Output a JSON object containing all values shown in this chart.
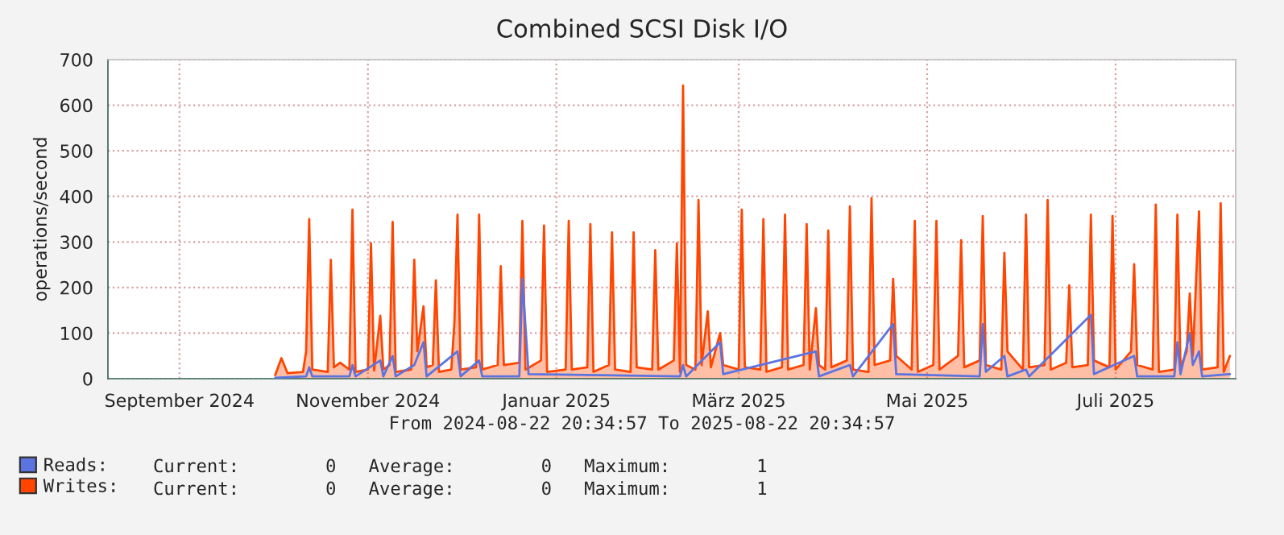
{
  "chart_data": {
    "type": "line",
    "title": "Combined SCSI Disk I/O",
    "ylabel": "operations/second",
    "xlim": [
      "2024-08-22T20:34",
      "2025-08-22T20:34"
    ],
    "xticks": [
      {
        "value": "2024-09-15",
        "label": "September 2024"
      },
      {
        "value": "2024-11-15",
        "label": "November 2024"
      },
      {
        "value": "2025-01-15",
        "label": "Januar 2025"
      },
      {
        "value": "2025-03-15",
        "label": "März 2025"
      },
      {
        "value": "2025-05-15",
        "label": "Mai 2025"
      },
      {
        "value": "2025-07-15",
        "label": "Juli 2025"
      }
    ],
    "ylim": [
      0,
      700
    ],
    "yticks": [
      0,
      100,
      200,
      300,
      400,
      500,
      600,
      700
    ],
    "grid": true,
    "legend": "bottom left",
    "annotations": [
      "From 2024-08-22 20:34:57 To 2025-08-22 20:34:57",
      "Current:        0   Average:        0   Maximum:        1",
      "Current:        0   Average:        0   Maximum:        1"
    ],
    "series": [
      {
        "name": "Reads:",
        "color": "#5b74e0",
        "x": [
          "2024-10-16",
          "2024-10-26",
          "2024-10-27",
          "2024-10-28",
          "2024-11-09",
          "2024-11-10",
          "2024-11-11",
          "2024-11-19",
          "2024-11-20",
          "2024-11-23",
          "2024-11-24",
          "2024-11-30",
          "2024-12-03",
          "2024-12-04",
          "2024-12-14",
          "2024-12-15",
          "2024-12-21",
          "2024-12-22",
          "2025-01-03",
          "2025-01-04",
          "2025-01-06",
          "2025-02-24",
          "2025-02-25",
          "2025-02-26",
          "2025-03-09",
          "2025-03-10",
          "2025-04-09",
          "2025-04-10",
          "2025-04-20",
          "2025-04-21",
          "2025-05-04",
          "2025-05-05",
          "2025-06-01",
          "2025-06-02",
          "2025-06-03",
          "2025-06-09",
          "2025-06-10",
          "2025-06-16",
          "2025-06-17",
          "2025-07-07",
          "2025-07-08",
          "2025-07-21",
          "2025-07-22",
          "2025-08-03",
          "2025-08-04",
          "2025-08-05",
          "2025-08-08",
          "2025-08-09",
          "2025-08-11",
          "2025-08-12",
          "2025-08-21"
        ],
        "values": [
          2,
          5,
          25,
          5,
          5,
          30,
          5,
          40,
          5,
          50,
          5,
          30,
          80,
          5,
          60,
          5,
          40,
          5,
          5,
          219,
          10,
          5,
          30,
          5,
          80,
          10,
          60,
          5,
          30,
          5,
          120,
          10,
          5,
          120,
          15,
          50,
          5,
          20,
          5,
          140,
          10,
          50,
          5,
          5,
          80,
          10,
          100,
          30,
          60,
          5,
          10
        ]
      },
      {
        "name": "Writes:",
        "type": "area",
        "color": "#ff4500",
        "x": [
          "2024-10-16",
          "2024-10-18",
          "2024-10-20",
          "2024-10-25",
          "2024-10-26",
          "2024-10-27",
          "2024-10-28",
          "2024-11-02",
          "2024-11-03",
          "2024-11-04",
          "2024-11-06",
          "2024-11-09",
          "2024-11-10",
          "2024-11-11",
          "2024-11-15",
          "2024-11-16",
          "2024-11-17",
          "2024-11-19",
          "2024-11-20",
          "2024-11-22",
          "2024-11-23",
          "2024-11-24",
          "2024-11-29",
          "2024-11-30",
          "2024-12-01",
          "2024-12-03",
          "2024-12-04",
          "2024-12-06",
          "2024-12-07",
          "2024-12-08",
          "2024-12-12",
          "2024-12-13",
          "2024-12-14",
          "2024-12-15",
          "2024-12-20",
          "2024-12-21",
          "2024-12-22",
          "2024-12-27",
          "2024-12-28",
          "2024-12-29",
          "2025-01-03",
          "2025-01-04",
          "2025-01-05",
          "2025-01-10",
          "2025-01-11",
          "2025-01-12",
          "2025-01-18",
          "2025-01-19",
          "2025-01-20",
          "2025-01-25",
          "2025-01-26",
          "2025-01-27",
          "2025-02-01",
          "2025-02-02",
          "2025-02-03",
          "2025-02-08",
          "2025-02-09",
          "2025-02-10",
          "2025-02-15",
          "2025-02-16",
          "2025-02-17",
          "2025-02-22",
          "2025-02-23",
          "2025-02-24",
          "2025-02-25",
          "2025-02-26",
          "2025-03-01",
          "2025-03-02",
          "2025-03-03",
          "2025-03-05",
          "2025-03-06",
          "2025-03-09",
          "2025-03-10",
          "2025-03-15",
          "2025-03-16",
          "2025-03-17",
          "2025-03-22",
          "2025-03-23",
          "2025-03-24",
          "2025-03-29",
          "2025-03-30",
          "2025-03-31",
          "2025-04-05",
          "2025-04-06",
          "2025-04-07",
          "2025-04-09",
          "2025-04-10",
          "2025-04-12",
          "2025-04-13",
          "2025-04-14",
          "2025-04-19",
          "2025-04-20",
          "2025-04-21",
          "2025-04-26",
          "2025-04-27",
          "2025-04-28",
          "2025-05-03",
          "2025-05-04",
          "2025-05-05",
          "2025-05-10",
          "2025-05-11",
          "2025-05-12",
          "2025-05-17",
          "2025-05-18",
          "2025-05-19",
          "2025-05-25",
          "2025-05-26",
          "2025-05-27",
          "2025-06-01",
          "2025-06-02",
          "2025-06-03",
          "2025-06-08",
          "2025-06-09",
          "2025-06-10",
          "2025-06-15",
          "2025-06-16",
          "2025-06-17",
          "2025-06-22",
          "2025-06-23",
          "2025-06-24",
          "2025-06-29",
          "2025-06-30",
          "2025-07-01",
          "2025-07-06",
          "2025-07-07",
          "2025-07-08",
          "2025-07-13",
          "2025-07-14",
          "2025-07-15",
          "2025-07-20",
          "2025-07-21",
          "2025-07-22",
          "2025-07-27",
          "2025-07-28",
          "2025-07-29",
          "2025-08-03",
          "2025-08-04",
          "2025-08-05",
          "2025-08-07",
          "2025-08-08",
          "2025-08-09",
          "2025-08-11",
          "2025-08-12",
          "2025-08-17",
          "2025-08-18",
          "2025-08-19",
          "2025-08-21"
        ],
        "values": [
          8,
          45,
          12,
          15,
          60,
          350,
          20,
          15,
          261,
          25,
          35,
          20,
          371,
          15,
          20,
          297,
          18,
          138,
          20,
          30,
          344,
          15,
          20,
          261,
          60,
          159,
          25,
          30,
          216,
          15,
          20,
          124,
          360,
          20,
          25,
          360,
          20,
          30,
          247,
          30,
          35,
          346,
          20,
          40,
          336,
          15,
          20,
          346,
          20,
          25,
          339,
          15,
          30,
          321,
          20,
          15,
          321,
          25,
          20,
          282,
          20,
          40,
          297,
          15,
          643,
          30,
          20,
          392,
          30,
          148,
          25,
          100,
          30,
          20,
          371,
          25,
          20,
          350,
          15,
          25,
          360,
          20,
          30,
          339,
          20,
          155,
          30,
          20,
          325,
          25,
          40,
          378,
          20,
          15,
          396,
          30,
          40,
          219,
          50,
          20,
          346,
          15,
          30,
          346,
          20,
          50,
          304,
          25,
          40,
          357,
          30,
          20,
          276,
          60,
          20,
          360,
          25,
          30,
          392,
          20,
          35,
          205,
          25,
          30,
          360,
          40,
          25,
          357,
          20,
          60,
          251,
          30,
          20,
          382,
          15,
          20,
          360,
          25,
          60,
          187,
          50,
          367,
          20,
          25,
          385,
          15,
          50
        ]
      }
    ]
  }
}
